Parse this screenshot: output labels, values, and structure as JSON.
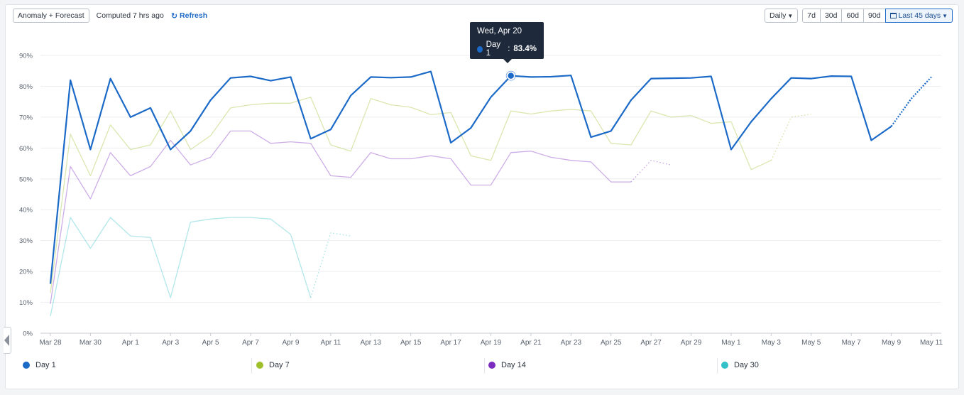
{
  "toolbar": {
    "mode_label": "Anomaly + Forecast",
    "computed_text": "Computed 7 hrs ago",
    "refresh_label": "Refresh",
    "interval_label": "Daily",
    "ranges": [
      "7d",
      "30d",
      "60d",
      "90d"
    ],
    "active_range_label": "Last 45 days"
  },
  "tooltip": {
    "title": "Wed, Apr 20",
    "series": "Day 1",
    "value": "83.4%"
  },
  "chart_data": {
    "type": "line",
    "x": [
      "Mar 28",
      "Mar 29",
      "Mar 30",
      "Mar 31",
      "Apr 1",
      "Apr 2",
      "Apr 3",
      "Apr 4",
      "Apr 5",
      "Apr 6",
      "Apr 7",
      "Apr 8",
      "Apr 9",
      "Apr 10",
      "Apr 11",
      "Apr 12",
      "Apr 13",
      "Apr 14",
      "Apr 15",
      "Apr 16",
      "Apr 17",
      "Apr 18",
      "Apr 19",
      "Apr 20",
      "Apr 21",
      "Apr 22",
      "Apr 23",
      "Apr 24",
      "Apr 25",
      "Apr 26",
      "Apr 27",
      "Apr 28",
      "Apr 29",
      "Apr 30",
      "May 1",
      "May 2",
      "May 3",
      "May 4",
      "May 5",
      "May 6",
      "May 7",
      "May 8",
      "May 9",
      "May 10",
      "May 11"
    ],
    "x_tick_labels": [
      "Mar 28",
      "Mar 30",
      "Apr 1",
      "Apr 3",
      "Apr 5",
      "Apr 7",
      "Apr 9",
      "Apr 11",
      "Apr 13",
      "Apr 15",
      "Apr 17",
      "Apr 19",
      "Apr 21",
      "Apr 23",
      "Apr 25",
      "Apr 27",
      "Apr 29",
      "May 1",
      "May 3",
      "May 5",
      "May 7",
      "May 9",
      "May 11"
    ],
    "y_ticks": [
      "0%",
      "10%",
      "20%",
      "30%",
      "40%",
      "50%",
      "60%",
      "70%",
      "80%",
      "90%"
    ],
    "ylim": [
      0,
      90
    ],
    "grid": true,
    "legend_position": "bottom",
    "series": [
      {
        "name": "Day 1",
        "color": "#1c6ac8",
        "values": [
          16.0,
          82.0,
          59.5,
          82.5,
          70.0,
          73.0,
          59.5,
          65.5,
          75.5,
          82.7,
          83.2,
          81.8,
          83.0,
          63.0,
          66.0,
          77.0,
          83.0,
          82.8,
          83.0,
          84.8,
          61.7,
          66.5,
          76.5,
          83.4,
          83.0,
          83.1,
          83.5,
          63.5,
          65.5,
          75.5,
          82.5,
          82.6,
          82.7,
          83.2,
          59.5,
          68.5,
          76.0,
          82.7,
          82.5,
          83.3,
          83.2,
          62.5,
          67.0,
          null,
          null
        ],
        "forecast": [
          null,
          null,
          null,
          null,
          null,
          null,
          null,
          null,
          null,
          null,
          null,
          null,
          null,
          null,
          null,
          null,
          null,
          null,
          null,
          null,
          null,
          null,
          null,
          null,
          null,
          null,
          null,
          null,
          null,
          null,
          null,
          null,
          null,
          null,
          null,
          null,
          null,
          null,
          null,
          null,
          null,
          null,
          67.0,
          76.0,
          83.0
        ]
      },
      {
        "name": "Day 7",
        "color": "#9fbf2c",
        "values": [
          13.0,
          64.5,
          51.0,
          67.5,
          59.5,
          61.0,
          72.0,
          59.5,
          64.0,
          73.0,
          74.0,
          74.5,
          74.5,
          76.5,
          61.0,
          59.0,
          76.0,
          74.0,
          73.2,
          70.8,
          71.5,
          57.5,
          56.0,
          72.0,
          71.0,
          72.0,
          72.5,
          72.0,
          61.5,
          61.0,
          72.0,
          70.0,
          70.5,
          68.0,
          68.5,
          53.0,
          56.0,
          null,
          null,
          null,
          null,
          null,
          null,
          null,
          null
        ],
        "forecast": [
          null,
          null,
          null,
          null,
          null,
          null,
          null,
          null,
          null,
          null,
          null,
          null,
          null,
          null,
          null,
          null,
          null,
          null,
          null,
          null,
          null,
          null,
          null,
          null,
          null,
          null,
          null,
          null,
          null,
          null,
          null,
          null,
          null,
          null,
          null,
          null,
          56.0,
          70.0,
          71.0,
          null,
          null,
          null,
          null,
          null,
          null
        ]
      },
      {
        "name": "Day 14",
        "color": "#7c2bbf",
        "values": [
          9.5,
          54.0,
          43.5,
          58.5,
          51.0,
          54.0,
          62.5,
          54.5,
          57.0,
          65.5,
          65.5,
          61.5,
          62.0,
          61.5,
          51.0,
          50.5,
          58.5,
          56.5,
          56.5,
          57.5,
          56.5,
          48.0,
          48.0,
          58.5,
          59.0,
          57.0,
          56.0,
          55.5,
          49.0,
          49.0,
          null,
          null,
          null,
          null,
          null,
          null,
          null,
          null,
          null,
          null,
          null,
          null,
          null,
          null,
          null
        ],
        "forecast": [
          null,
          null,
          null,
          null,
          null,
          null,
          null,
          null,
          null,
          null,
          null,
          null,
          null,
          null,
          null,
          null,
          null,
          null,
          null,
          null,
          null,
          null,
          null,
          null,
          null,
          null,
          null,
          null,
          null,
          49.0,
          56.0,
          54.5,
          null,
          null,
          null,
          null,
          null,
          null,
          null,
          null,
          null,
          null,
          null,
          null,
          null
        ]
      },
      {
        "name": "Day 30",
        "color": "#34c0c8",
        "values": [
          5.5,
          37.5,
          27.5,
          37.5,
          31.5,
          31.0,
          11.5,
          36.0,
          37.0,
          37.5,
          37.5,
          37.0,
          32.0,
          11.5,
          null,
          null,
          null,
          null,
          null,
          null,
          null,
          null,
          null,
          null,
          null,
          null,
          null,
          null,
          null,
          null,
          null,
          null,
          null,
          null,
          null,
          null,
          null,
          null,
          null,
          null,
          null,
          null,
          null,
          null,
          null
        ],
        "forecast": [
          null,
          null,
          null,
          null,
          null,
          null,
          null,
          null,
          null,
          null,
          null,
          null,
          null,
          11.5,
          32.5,
          31.5,
          null,
          null,
          null,
          null,
          null,
          null,
          null,
          null,
          null,
          null,
          null,
          null,
          null,
          null,
          null,
          null,
          null,
          null,
          null,
          null,
          null,
          null,
          null,
          null,
          null,
          null,
          null,
          null,
          null
        ]
      }
    ]
  },
  "legend": [
    "Day 1",
    "Day 7",
    "Day 14",
    "Day 30"
  ]
}
